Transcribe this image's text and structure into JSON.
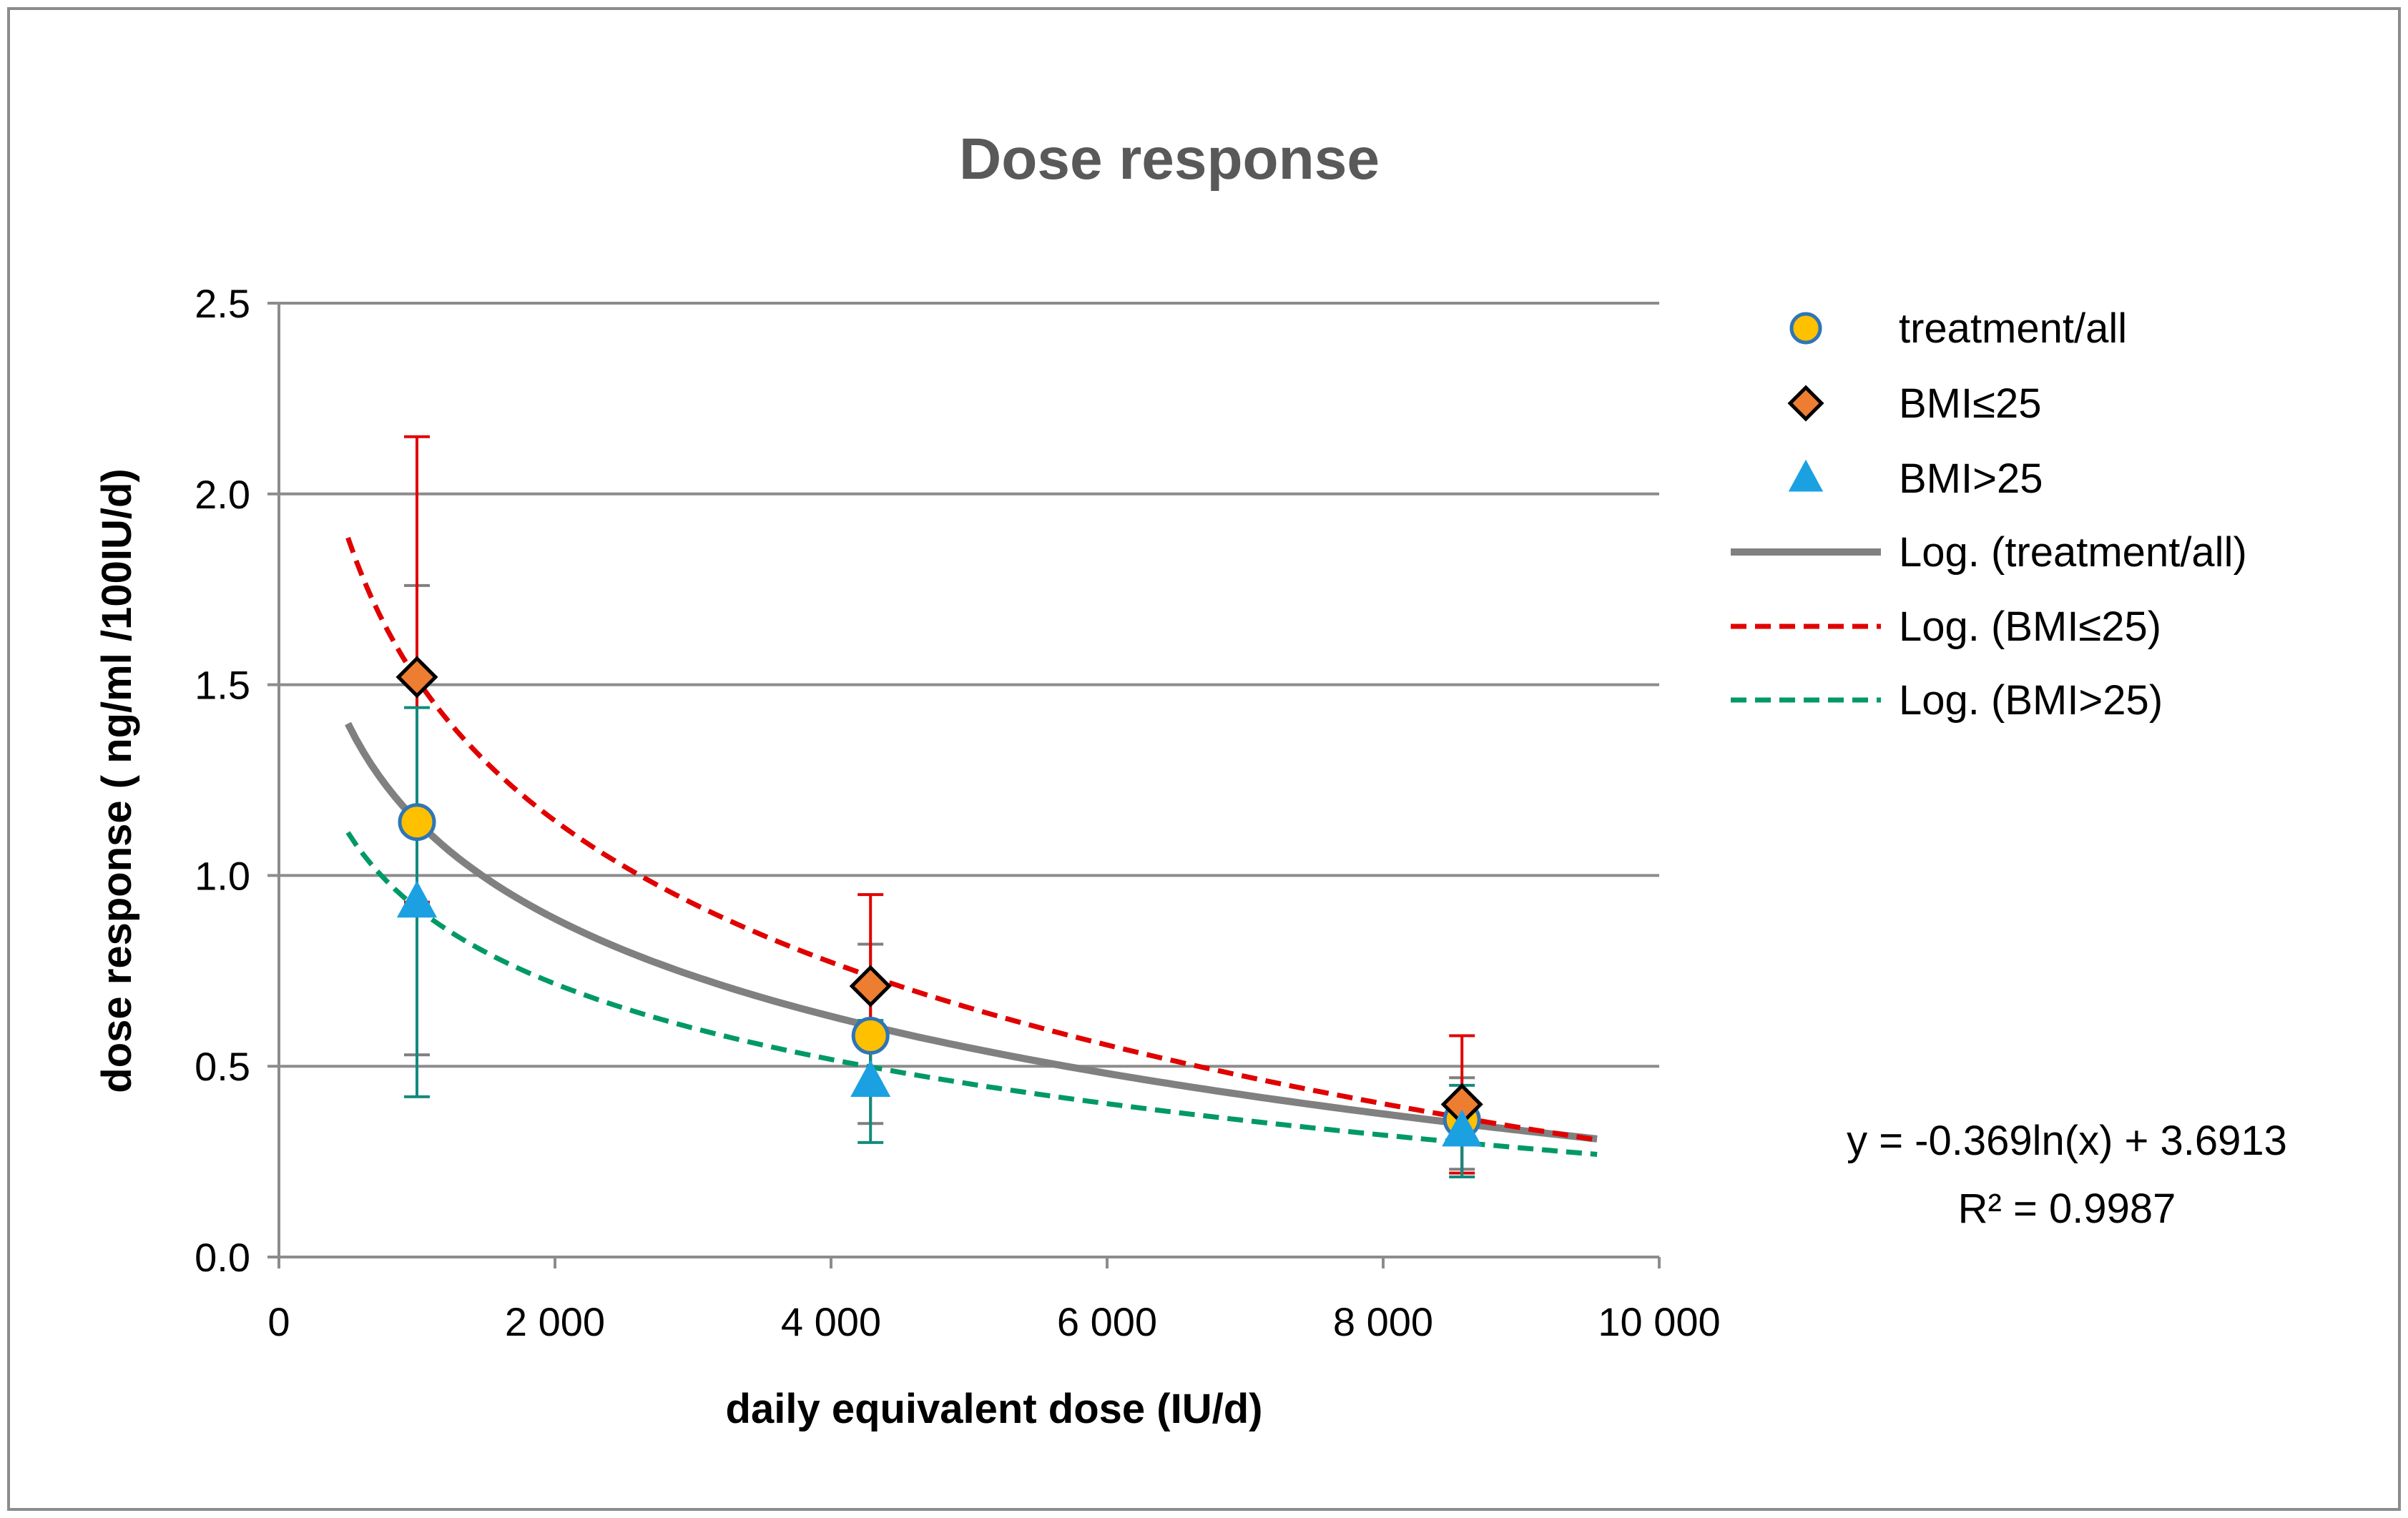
{
  "chart_data": {
    "type": "scatter",
    "title": "Dose response",
    "xlabel": "daily equivalent dose (IU/d)",
    "ylabel": "dose response ( ng/ml /100IU/d)",
    "xlim": [
      0,
      10000
    ],
    "ylim": [
      0,
      2.5
    ],
    "xticks": [
      0,
      2000,
      4000,
      6000,
      8000,
      10000
    ],
    "xtick_labels": [
      "0",
      "2 000",
      "4 000",
      "6 000",
      "8 000",
      "10 000"
    ],
    "yticks": [
      0,
      0.5,
      1.0,
      1.5,
      2.0,
      2.5
    ],
    "ytick_labels": [
      "0.0",
      "0.5",
      "1.0",
      "1.5",
      "2.0",
      "2.5"
    ],
    "grid": "horizontal",
    "legend_position": "right",
    "series": [
      {
        "name": "treatment/all",
        "marker": "circle",
        "color": "#FFC000",
        "edge_color": "#2E75B6",
        "x": [
          1000,
          4286,
          8571
        ],
        "y": [
          1.14,
          0.58,
          0.36
        ],
        "err_low": [
          0.53,
          0.35,
          0.23
        ],
        "err_high": [
          1.76,
          0.82,
          0.47
        ],
        "err_color": "#7F7F7F"
      },
      {
        "name": "BMI≤25",
        "marker": "diamond",
        "color": "#ED7D31",
        "edge_color": "#000000",
        "x": [
          1000,
          4286,
          8571
        ],
        "y": [
          1.52,
          0.71,
          0.4
        ],
        "err_low": [
          0.93,
          0.45,
          0.22
        ],
        "err_high": [
          2.15,
          0.95,
          0.58
        ],
        "err_color": "#E00000"
      },
      {
        "name": "BMI>25",
        "marker": "triangle",
        "color": "#1BA1E2",
        "edge_color": "#1BA1E2",
        "x": [
          1000,
          4286,
          8571
        ],
        "y": [
          0.93,
          0.46,
          0.33
        ],
        "err_low": [
          0.42,
          0.3,
          0.21
        ],
        "err_high": [
          1.44,
          0.62,
          0.45
        ],
        "err_color": "#138A7E"
      }
    ],
    "trendlines": [
      {
        "name": "Log. (treatment/all)",
        "a": -0.369,
        "b": 3.6913,
        "x_range": [
          500,
          9550
        ],
        "color": "#808080",
        "style": "solid"
      },
      {
        "name": "Log. (BMI≤25)",
        "a": -0.535,
        "b": 5.21,
        "x_range": [
          500,
          9550
        ],
        "color": "#E00000",
        "style": "dashed"
      },
      {
        "name": "Log. (BMI>25)",
        "a": -0.286,
        "b": 2.89,
        "x_range": [
          500,
          9550
        ],
        "color": "#009966",
        "style": "dashed"
      }
    ],
    "equation": "y = -0.369ln(x) + 3.6913",
    "r_squared": "R² = 0.9987"
  }
}
